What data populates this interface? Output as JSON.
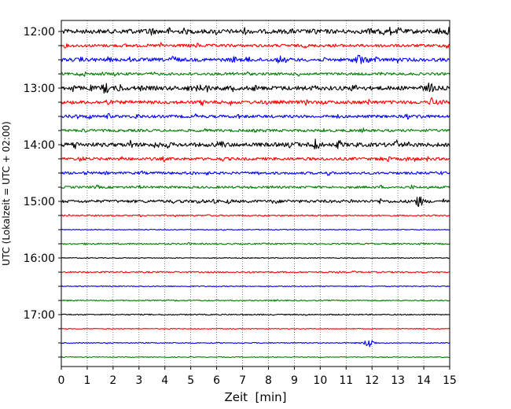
{
  "chart_data": {
    "type": "line",
    "title": "",
    "xlabel": "Zeit  [min]",
    "ylabel": "UTC (Lokalzeit = UTC + 02:00)",
    "xlim": [
      0,
      15
    ],
    "x_ticks": [
      0,
      1,
      2,
      3,
      4,
      5,
      6,
      7,
      8,
      9,
      10,
      11,
      12,
      13,
      14,
      15
    ],
    "x_tick_labels": [
      "0",
      "1",
      "2",
      "3",
      "4",
      "5",
      "6",
      "7",
      "8",
      "9",
      "10",
      "11",
      "12",
      "13",
      "14",
      "15"
    ],
    "y_tick_labels": [
      "12:00",
      "13:00",
      "14:00",
      "15:00",
      "16:00",
      "17:00"
    ],
    "trace_interval_minutes": 15,
    "trace_start": "12:00",
    "trace_end": "17:45",
    "grid": "vertical dotted lines at each minute",
    "color_cycle": [
      "#000000",
      "#ff0000",
      "#0000ff",
      "#008000"
    ],
    "trace_activity": [
      2.6,
      1.6,
      2.0,
      1.4,
      2.5,
      2.0,
      1.6,
      1.4,
      2.4,
      1.6,
      1.3,
      1.2,
      1.6,
      0.6,
      0.2,
      0.6,
      0.2,
      0.6,
      0.3,
      0.4,
      0.4,
      0.2,
      0.3,
      0.2
    ],
    "events": [
      {
        "trace": "15:00",
        "minute": 13.8,
        "color": "black"
      },
      {
        "trace": "17:30",
        "minute": 11.9,
        "color": "blue"
      },
      {
        "trace": "14:00",
        "minute": 9.8,
        "color": "black"
      },
      {
        "trace": "12:30",
        "minute": 11.5,
        "color": "blue"
      }
    ]
  }
}
